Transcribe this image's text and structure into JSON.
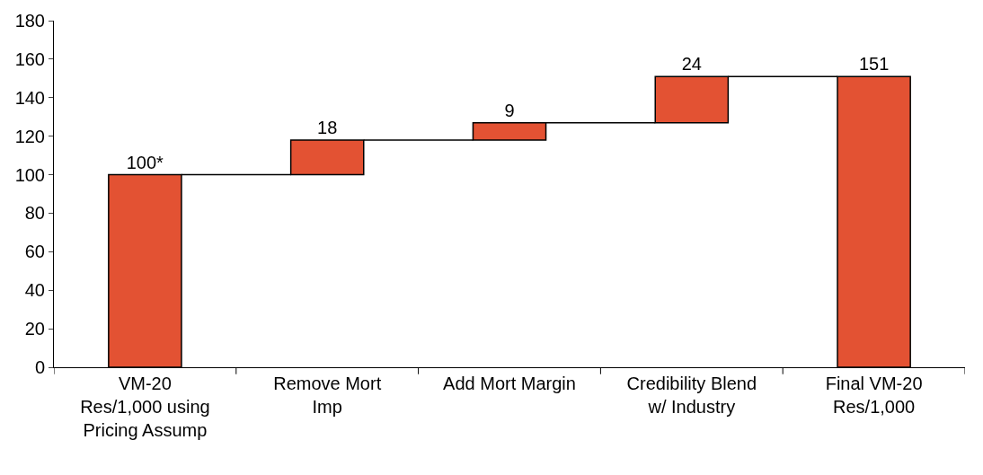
{
  "chart_data": {
    "type": "bar",
    "categories": [
      "VM-20\nRes/1,000 using\nPricing Assump",
      "Remove Mort\nImp",
      "Add Mort Margin",
      "Credibility Blend\nw/ Industry",
      "Final VM-20\nRes/1,000"
    ],
    "values": [
      100,
      18,
      9,
      24,
      151
    ],
    "base": [
      0,
      100,
      118,
      127,
      0
    ],
    "value_labels": [
      "100*",
      "18",
      "9",
      "24",
      "151"
    ],
    "color": "#e35233",
    "ylim": [
      0,
      180
    ],
    "yticks": [
      0,
      20,
      40,
      60,
      80,
      100,
      120,
      140,
      160,
      180
    ]
  }
}
